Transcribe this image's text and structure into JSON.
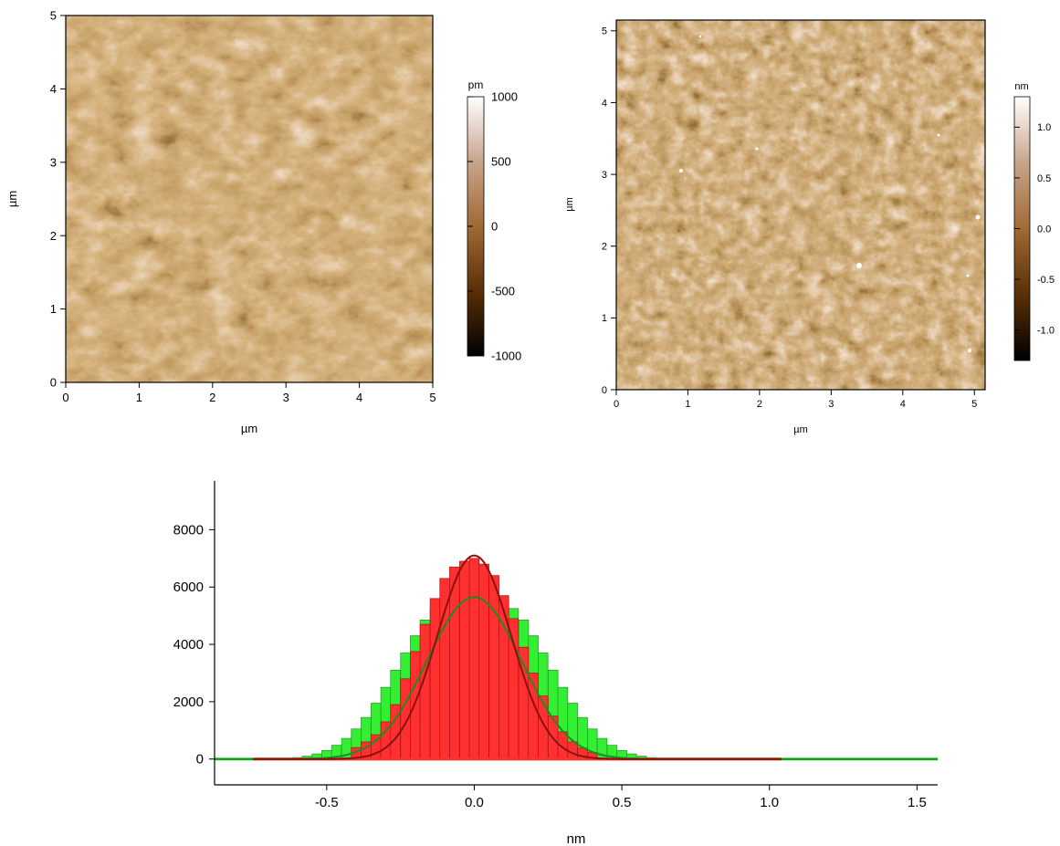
{
  "chart_data": [
    {
      "type": "heatmap",
      "xlabel": "µm",
      "ylabel": "µm",
      "xlim": [
        0,
        5
      ],
      "ylim": [
        0,
        5
      ],
      "x_ticks": [
        "0",
        "1",
        "2",
        "3",
        "4",
        "5"
      ],
      "y_ticks": [
        "0",
        "1",
        "2",
        "3",
        "4",
        "5"
      ],
      "colorbar": {
        "unit": "pm",
        "range": [
          -1000,
          1000
        ],
        "ticks": [
          "1000",
          "500",
          "0",
          "-500",
          "-1000"
        ],
        "colors": [
          "#000000",
          "#5a2f06",
          "#a06a34",
          "#c8a48b",
          "#ffffff"
        ]
      }
    },
    {
      "type": "heatmap",
      "xlabel": "µm",
      "ylabel": "µm",
      "xlim": [
        0,
        5.15
      ],
      "ylim": [
        0,
        5.15
      ],
      "x_ticks": [
        "0",
        "1",
        "2",
        "3",
        "4",
        "5"
      ],
      "y_ticks": [
        "0",
        "1",
        "2",
        "3",
        "4",
        "5"
      ],
      "colorbar": {
        "unit": "nm",
        "range": [
          -1.3,
          1.3
        ],
        "ticks": [
          "1.0",
          "0.5",
          "0.0",
          "-0.5",
          "-1.0"
        ],
        "colors": [
          "#000000",
          "#5a2f06",
          "#a06a34",
          "#c8a48b",
          "#ffffff"
        ]
      }
    },
    {
      "type": "bar",
      "xlabel": "nm",
      "ylabel": "",
      "xlim": [
        -0.88,
        1.57
      ],
      "ylim": [
        -900,
        9700
      ],
      "x_ticks": [
        "-0.5",
        "0.0",
        "0.5",
        "1.0",
        "1.5"
      ],
      "y_ticks": [
        "0",
        "2000",
        "4000",
        "6000",
        "8000"
      ],
      "series": [
        {
          "color": "#33ee33",
          "edge": "#1a9a1a",
          "fit_color": "#1f8a1f",
          "fit": {
            "mean": 0.0,
            "sigma": 0.16,
            "peak": 5650,
            "range": [
              -0.88,
              1.57
            ]
          },
          "bin_width": 0.0333,
          "x": [
            -0.6,
            -0.567,
            -0.533,
            -0.5,
            -0.467,
            -0.433,
            -0.4,
            -0.367,
            -0.333,
            -0.3,
            -0.267,
            -0.233,
            -0.2,
            -0.167,
            -0.133,
            -0.1,
            -0.067,
            -0.033,
            0.0,
            0.033,
            0.067,
            0.1,
            0.133,
            0.167,
            0.2,
            0.233,
            0.267,
            0.3,
            0.333,
            0.367,
            0.4,
            0.433,
            0.467,
            0.5,
            0.533,
            0.567,
            0.6
          ],
          "values": [
            50,
            100,
            180,
            300,
            480,
            720,
            1050,
            1450,
            1950,
            2500,
            3100,
            3700,
            4300,
            4850,
            5250,
            5520,
            5650,
            5650,
            5650,
            5650,
            5650,
            5520,
            5250,
            4850,
            4300,
            3700,
            3100,
            2500,
            1950,
            1450,
            1050,
            720,
            480,
            300,
            180,
            100,
            50
          ]
        },
        {
          "color": "#ff3030",
          "edge": "#b01010",
          "fit_color": "#8b1010",
          "fit": {
            "mean": 0.0,
            "sigma": 0.125,
            "peak": 7100,
            "range": [
              -0.75,
              1.04
            ]
          },
          "bin_width": 0.0333,
          "x": [
            -0.4,
            -0.367,
            -0.333,
            -0.3,
            -0.267,
            -0.233,
            -0.2,
            -0.167,
            -0.133,
            -0.1,
            -0.067,
            -0.033,
            0.0,
            0.033,
            0.067,
            0.1,
            0.133,
            0.167,
            0.2,
            0.233,
            0.267,
            0.3,
            0.333,
            0.367,
            0.4
          ],
          "values": [
            400,
            600,
            850,
            1300,
            1900,
            2800,
            3750,
            4700,
            5600,
            6300,
            6700,
            6900,
            7000,
            6800,
            6400,
            5700,
            4900,
            3900,
            3000,
            2200,
            1500,
            950,
            600,
            380,
            230
          ]
        }
      ]
    }
  ]
}
